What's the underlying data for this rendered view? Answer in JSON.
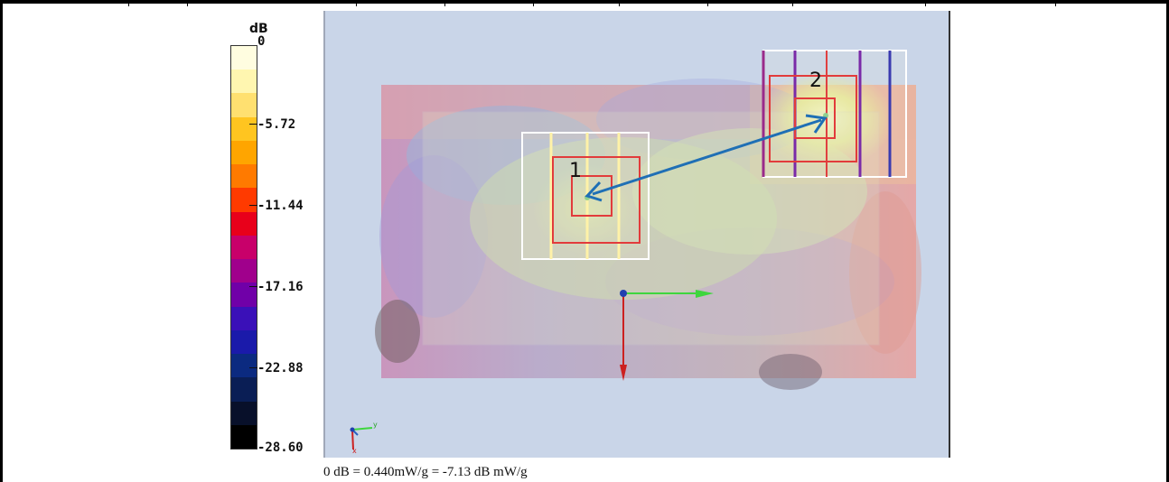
{
  "colorbar": {
    "unit": "dB",
    "ticks": [
      "0",
      "-5.72",
      "-11.44",
      "-17.16",
      "-22.88",
      "-28.60"
    ],
    "colors": [
      "#fffde0",
      "#fff6b0",
      "#ffe070",
      "#ffc520",
      "#ffa500",
      "#ff7a00",
      "#ff3a00",
      "#e8001a",
      "#c8006a",
      "#a0008c",
      "#7000a8",
      "#3a10b8",
      "#1a1aaa",
      "#0b2a80",
      "#0a1e55",
      "#08102a",
      "#000000"
    ]
  },
  "viewport": {
    "marker_1": "1",
    "marker_2": "2",
    "axis_y_label": "y",
    "axis_x_label": "x"
  },
  "caption": "0 dB = 0.440mW/g = -7.13 dB mW/g"
}
